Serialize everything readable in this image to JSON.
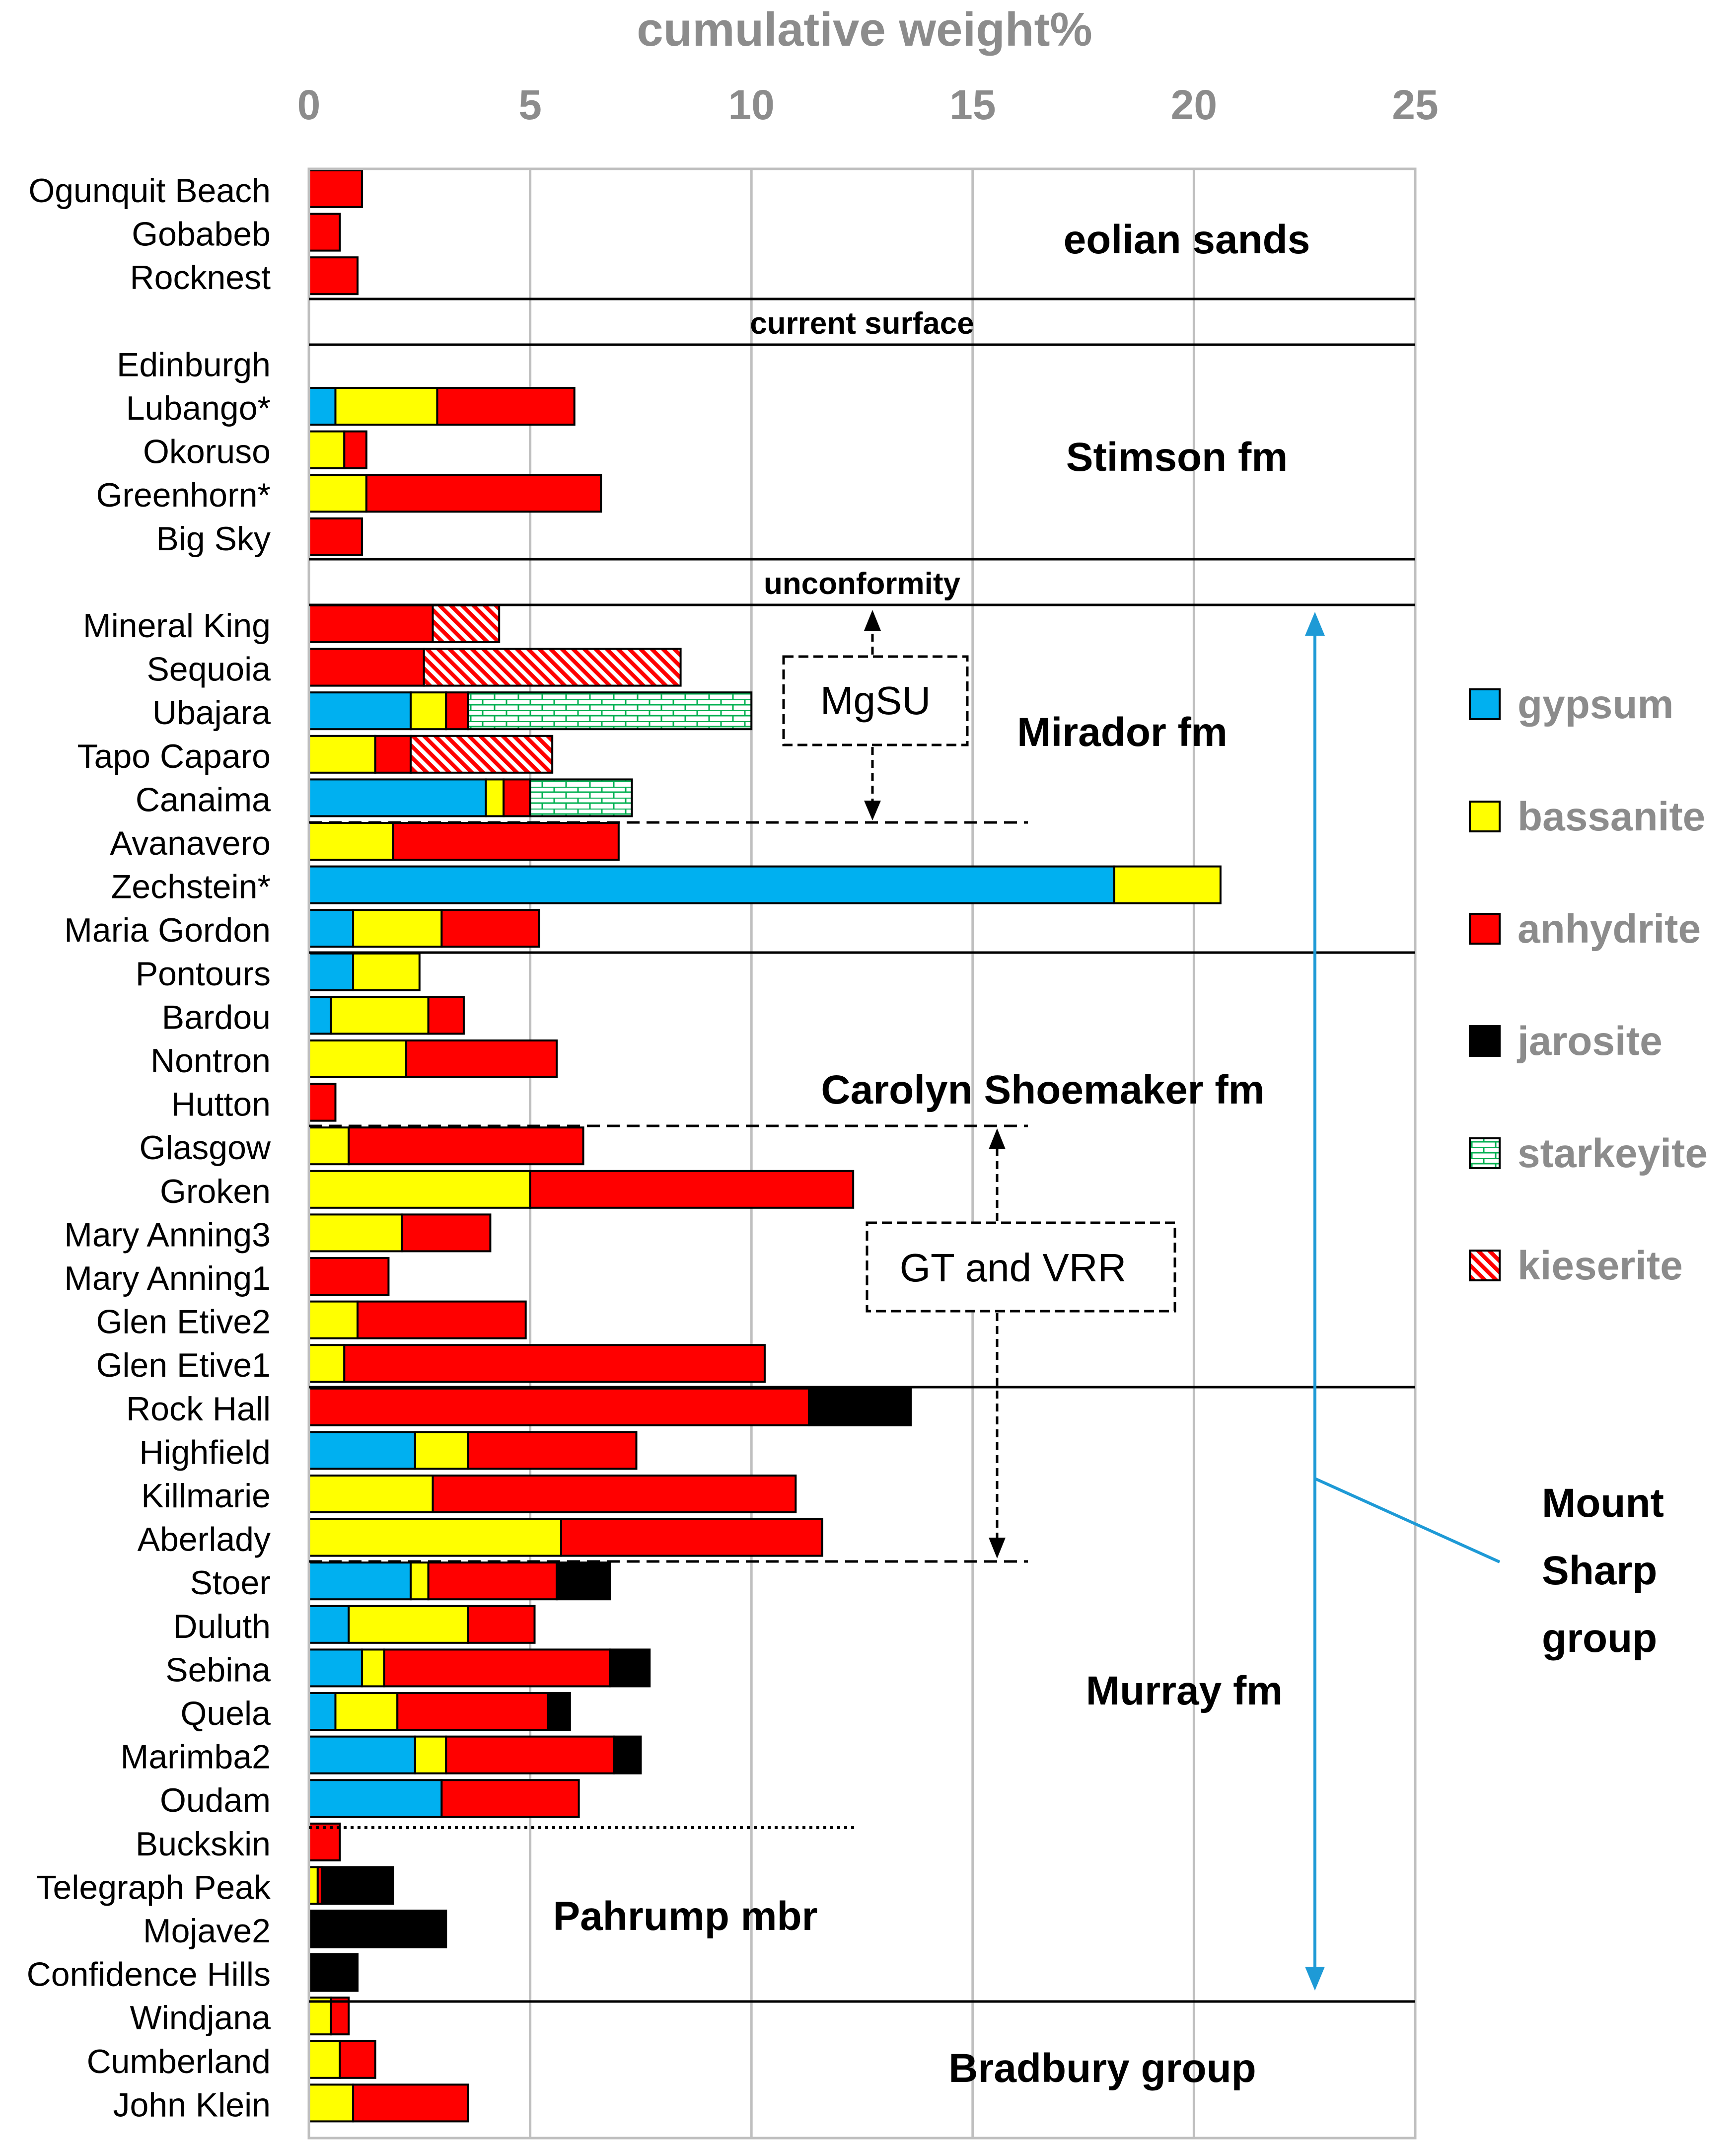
{
  "chart_data": {
    "type": "bar",
    "orientation": "horizontal",
    "stacked": true,
    "title": "cumulative weight%",
    "xlim": [
      0,
      25
    ],
    "xticks": [
      0,
      5,
      10,
      15,
      20,
      25
    ],
    "grid": true,
    "legend_position": "right",
    "categories": [
      "Ogunquit Beach",
      "Gobabeb",
      "Rocknest",
      "Edinburgh",
      "Lubango*",
      "Okoruso",
      "Greenhorn*",
      "Big Sky",
      "Mineral King",
      "Sequoia",
      "Ubajara",
      "Tapo Caparo",
      "Canaima",
      "Avanavero",
      "Zechstein*",
      "Maria Gordon",
      "Pontours",
      "Bardou",
      "Nontron",
      "Hutton",
      "Glasgow",
      "Groken",
      "Mary Anning3",
      "Mary Anning1",
      "Glen Etive2",
      "Glen Etive1",
      "Rock Hall",
      "Highfield",
      "Killmarie",
      "Aberlady",
      "Stoer",
      "Duluth",
      "Sebina",
      "Quela",
      "Marimba2",
      "Oudam",
      "Buckskin",
      "Telegraph Peak",
      "Mojave2",
      "Confidence Hills",
      "Windjana",
      "Cumberland",
      "John Klein"
    ],
    "row_slots": [
      0,
      1,
      2,
      4,
      5,
      6,
      7,
      8,
      10,
      11,
      12,
      13,
      14,
      15,
      16,
      17,
      18,
      19,
      20,
      21,
      22,
      23,
      24,
      25,
      26,
      27,
      28,
      29,
      30,
      31,
      32,
      33,
      34,
      35,
      36,
      37,
      38,
      39,
      40,
      41,
      42,
      43,
      44
    ],
    "series": [
      {
        "name": "gypsum",
        "color": "#00b0f0",
        "pattern": "solid",
        "values": [
          0,
          0,
          0,
          0,
          0.6,
          0,
          0,
          0,
          0,
          0,
          2.3,
          0,
          4.0,
          0,
          18.2,
          1.0,
          1.0,
          0.5,
          0,
          0,
          0,
          0,
          0,
          0,
          0,
          0,
          0,
          2.4,
          0,
          0,
          2.3,
          0.9,
          1.2,
          0.6,
          2.4,
          3.0,
          0,
          0,
          0,
          0,
          0,
          0,
          0
        ]
      },
      {
        "name": "bassanite",
        "color": "#ffff00",
        "pattern": "solid",
        "values": [
          0,
          0,
          0,
          0,
          2.3,
          0.8,
          1.3,
          0,
          0,
          0,
          0.8,
          1.5,
          0.4,
          1.9,
          2.4,
          2.0,
          1.5,
          2.2,
          2.2,
          0,
          0.9,
          5.0,
          2.1,
          0,
          1.1,
          0.8,
          0,
          1.2,
          2.8,
          5.7,
          0.4,
          2.7,
          0.5,
          1.4,
          0.7,
          0,
          0,
          0.2,
          0,
          0,
          0.5,
          0.7,
          1.0
        ]
      },
      {
        "name": "anhydrite",
        "color": "#ff0000",
        "pattern": "solid",
        "values": [
          1.2,
          0.7,
          1.1,
          0,
          3.1,
          0.5,
          5.3,
          1.2,
          2.8,
          2.6,
          0.5,
          0.8,
          0.6,
          5.1,
          0,
          2.2,
          0,
          0.8,
          3.4,
          0.6,
          5.3,
          7.3,
          2.0,
          1.8,
          3.8,
          9.5,
          11.3,
          3.8,
          8.2,
          5.9,
          2.9,
          1.5,
          5.1,
          3.4,
          3.8,
          3.1,
          0.7,
          0.1,
          0,
          0,
          0.4,
          0.8,
          2.6
        ]
      },
      {
        "name": "jarosite",
        "color": "#000000",
        "pattern": "solid",
        "values": [
          0,
          0,
          0,
          0,
          0,
          0,
          0,
          0,
          0,
          0,
          0,
          0,
          0,
          0,
          0,
          0,
          0,
          0,
          0,
          0,
          0,
          0,
          0,
          0,
          0,
          0,
          2.3,
          0,
          0,
          0,
          1.2,
          0,
          0.9,
          0.5,
          0.6,
          0,
          0,
          1.6,
          3.1,
          1.1,
          0,
          0,
          0
        ]
      },
      {
        "name": "starkeyite",
        "color": "#00b050",
        "pattern": "bricks",
        "values": [
          0,
          0,
          0,
          0,
          0,
          0,
          0,
          0,
          0,
          0,
          6.4,
          0,
          2.3,
          0,
          0,
          0,
          0,
          0,
          0,
          0,
          0,
          0,
          0,
          0,
          0,
          0,
          0,
          0,
          0,
          0,
          0,
          0,
          0,
          0,
          0,
          0,
          0,
          0,
          0,
          0,
          0,
          0,
          0
        ]
      },
      {
        "name": "kieserite",
        "color": "#ff0000",
        "pattern": "hatch",
        "values": [
          0,
          0,
          0,
          0,
          0,
          0,
          0,
          0,
          1.5,
          5.8,
          0,
          3.2,
          0,
          0,
          0,
          0,
          0,
          0,
          0,
          0,
          0,
          0,
          0,
          0,
          0,
          0,
          0,
          0,
          0,
          0,
          0,
          0,
          0,
          0,
          0,
          0,
          0,
          0,
          0,
          0,
          0,
          0,
          0
        ]
      }
    ],
    "divider_labels": [
      "current surface",
      "unconformity"
    ],
    "group_labels": [
      "eolian sands",
      "Stimson fm",
      "Mirador fm",
      "Carolyn Shoemaker fm",
      "Murray fm",
      "Pahrump mbr",
      "Bradbury group"
    ],
    "annotations": [
      "MgSU",
      "GT and VRR"
    ],
    "mount_sharp_label": [
      "Mount",
      "Sharp",
      "group"
    ]
  }
}
